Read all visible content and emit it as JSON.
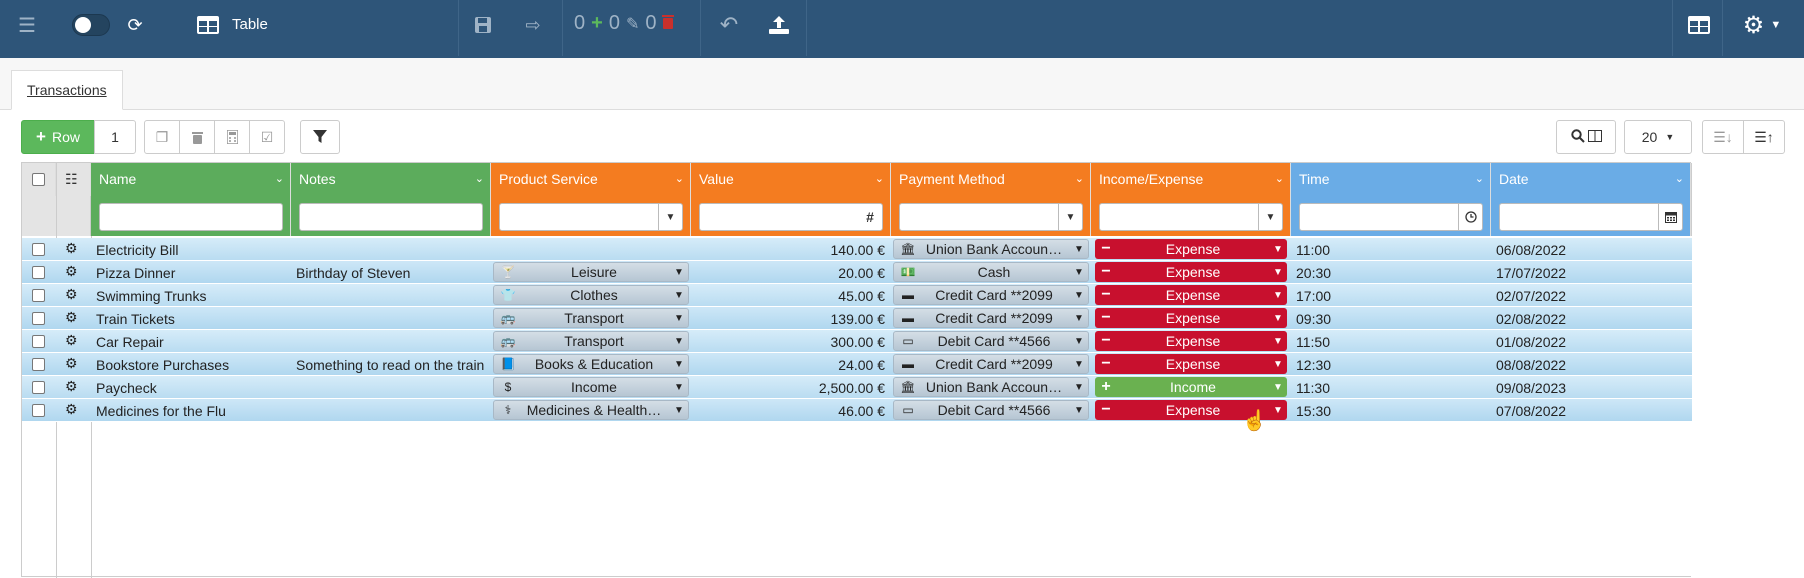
{
  "app": {
    "view_title": "Table"
  },
  "toolbar_counters": {
    "added": "0",
    "edited": "0",
    "deleted": "0"
  },
  "tabs": [
    {
      "label": "Transactions"
    }
  ],
  "actions": {
    "row_button_label": "Row",
    "row_count": "1",
    "page_size": "20"
  },
  "columns": [
    {
      "key": "name",
      "label": "Name",
      "color": "#5cac5c"
    },
    {
      "key": "notes",
      "label": "Notes",
      "color": "#5cac5c"
    },
    {
      "key": "product",
      "label": "Product Service",
      "color": "#f47c20"
    },
    {
      "key": "value",
      "label": "Value",
      "color": "#f47c20"
    },
    {
      "key": "payment",
      "label": "Payment Method",
      "color": "#f47c20"
    },
    {
      "key": "ie",
      "label": "Income/Expense",
      "color": "#f47c20"
    },
    {
      "key": "time",
      "label": "Time",
      "color": "#6aace6"
    },
    {
      "key": "date",
      "label": "Date",
      "color": "#6aace6"
    }
  ],
  "filters": {
    "value_symbol": "#"
  },
  "colors": {
    "expense": "#c8102e",
    "income": "#6ab150",
    "header_bar": "#2e5579"
  },
  "rows": [
    {
      "name": "Electricity Bill",
      "notes": "",
      "product": "",
      "product_icon": "",
      "value": "140.00 €",
      "payment": "Union Bank Accoun…",
      "payment_icon": "bank-icon",
      "ie": "Expense",
      "ie_type": "expense",
      "time": "11:00",
      "date": "06/08/2022"
    },
    {
      "name": "Pizza Dinner",
      "notes": "Birthday of Steven",
      "product": "Leisure",
      "product_icon": "cocktail-icon",
      "value": "20.00 €",
      "payment": "Cash",
      "payment_icon": "cash-icon",
      "ie": "Expense",
      "ie_type": "expense",
      "time": "20:30",
      "date": "17/07/2022"
    },
    {
      "name": "Swimming Trunks",
      "notes": "",
      "product": "Clothes",
      "product_icon": "shirt-icon",
      "value": "45.00 €",
      "payment": "Credit Card **2099",
      "payment_icon": "credit-card-icon",
      "ie": "Expense",
      "ie_type": "expense",
      "time": "17:00",
      "date": "02/07/2022"
    },
    {
      "name": "Train Tickets",
      "notes": "",
      "product": "Transport",
      "product_icon": "bus-icon",
      "value": "139.00 €",
      "payment": "Credit Card **2099",
      "payment_icon": "credit-card-icon",
      "ie": "Expense",
      "ie_type": "expense",
      "time": "09:30",
      "date": "02/08/2022"
    },
    {
      "name": "Car Repair",
      "notes": "",
      "product": "Transport",
      "product_icon": "bus-icon",
      "value": "300.00 €",
      "payment": "Debit Card **4566",
      "payment_icon": "debit-card-icon",
      "ie": "Expense",
      "ie_type": "expense",
      "time": "11:50",
      "date": "01/08/2022"
    },
    {
      "name": "Bookstore Purchases",
      "notes": "Something to read on the train",
      "product": "Books & Education",
      "product_icon": "book-icon",
      "value": "24.00 €",
      "payment": "Credit Card **2099",
      "payment_icon": "credit-card-icon",
      "ie": "Expense",
      "ie_type": "expense",
      "time": "12:30",
      "date": "08/08/2022"
    },
    {
      "name": "Paycheck",
      "notes": "",
      "product": "Income",
      "product_icon": "dollar-icon",
      "value": "2,500.00 €",
      "payment": "Union Bank Accoun…",
      "payment_icon": "bank-icon",
      "ie": "Income",
      "ie_type": "income",
      "time": "11:30",
      "date": "09/08/2023"
    },
    {
      "name": "Medicines for the Flu",
      "notes": "",
      "product": "Medicines & Health…",
      "product_icon": "stethoscope-icon",
      "value": "46.00 €",
      "payment": "Debit Card **4566",
      "payment_icon": "debit-card-icon",
      "ie": "Expense",
      "ie_type": "expense",
      "time": "15:30",
      "date": "07/08/2022"
    }
  ]
}
